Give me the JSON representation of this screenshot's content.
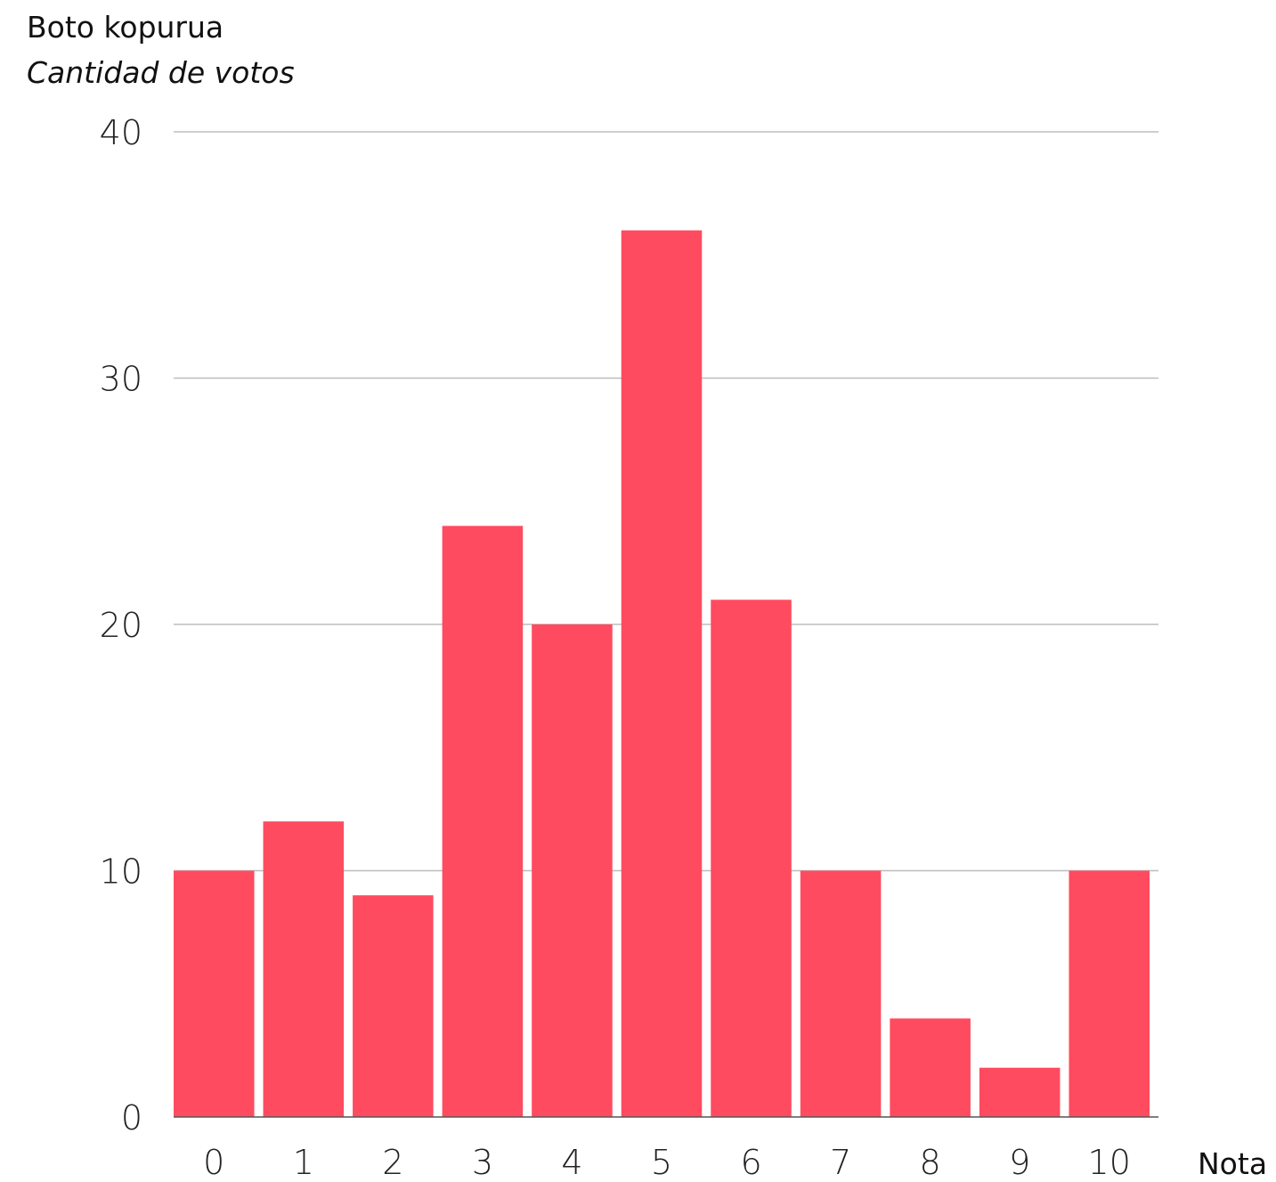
{
  "chart_data": {
    "type": "bar",
    "ylabel": "Boto kopurua",
    "ylabel_secondary": "Cantidad de votos",
    "xlabel": "Nota",
    "categories": [
      "0",
      "1",
      "2",
      "3",
      "4",
      "5",
      "6",
      "7",
      "8",
      "9",
      "10"
    ],
    "values": [
      10,
      12,
      9,
      24,
      20,
      36,
      21,
      10,
      4,
      2,
      10
    ],
    "ylim": [
      0,
      40
    ],
    "yticks": [
      "0",
      "10",
      "20",
      "30",
      "40"
    ],
    "grid": true,
    "legend": "none",
    "bar_color": "#ff4b5f"
  }
}
